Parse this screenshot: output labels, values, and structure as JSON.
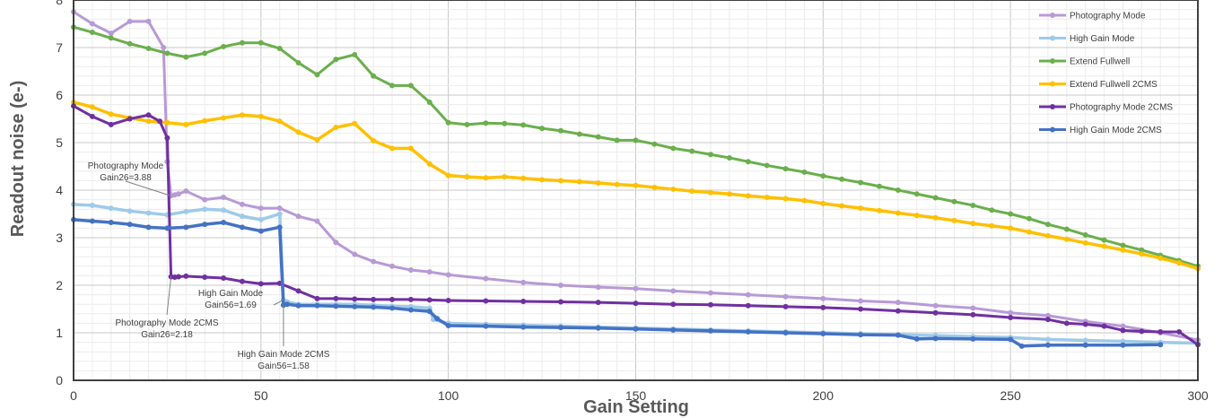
{
  "chart_data": {
    "type": "line",
    "xlabel": "Gain Setting",
    "ylabel": "Readout noise (e-)",
    "xlim": [
      0,
      300
    ],
    "ylim": [
      0,
      8
    ],
    "xticks": [
      0,
      50,
      100,
      150,
      200,
      250,
      300
    ],
    "yticks": [
      0,
      1,
      2,
      3,
      4,
      5,
      6,
      7,
      8
    ],
    "grid": true,
    "legend_position": "top-right",
    "series": [
      {
        "name": "Photography Mode",
        "color": "#b79ad6",
        "x": [
          0,
          5,
          10,
          15,
          20,
          24,
          25,
          26,
          27,
          28,
          30,
          35,
          40,
          45,
          50,
          55,
          60,
          65,
          70,
          75,
          80,
          85,
          90,
          95,
          100,
          110,
          120,
          130,
          140,
          150,
          160,
          170,
          180,
          190,
          200,
          210,
          220,
          230,
          240,
          250,
          260,
          270,
          280,
          290,
          300
        ],
        "y": [
          7.75,
          7.5,
          7.3,
          7.55,
          7.55,
          7.0,
          4.6,
          3.88,
          3.9,
          3.92,
          3.98,
          3.8,
          3.85,
          3.7,
          3.62,
          3.62,
          3.45,
          3.35,
          2.9,
          2.65,
          2.5,
          2.4,
          2.32,
          2.28,
          2.22,
          2.14,
          2.06,
          2.0,
          1.96,
          1.93,
          1.88,
          1.84,
          1.8,
          1.76,
          1.72,
          1.67,
          1.64,
          1.57,
          1.52,
          1.42,
          1.36,
          1.24,
          1.14,
          1.0,
          0.85
        ]
      },
      {
        "name": "High Gain Mode",
        "color": "#9ecae9",
        "x": [
          0,
          5,
          10,
          15,
          20,
          25,
          30,
          35,
          40,
          45,
          50,
          55,
          56,
          57,
          60,
          65,
          70,
          75,
          80,
          85,
          90,
          95,
          96,
          100,
          110,
          120,
          130,
          140,
          150,
          160,
          170,
          180,
          190,
          200,
          210,
          220,
          230,
          240,
          250,
          260,
          270,
          280,
          290,
          300
        ],
        "y": [
          3.7,
          3.68,
          3.62,
          3.56,
          3.52,
          3.48,
          3.55,
          3.6,
          3.58,
          3.45,
          3.38,
          3.5,
          1.69,
          1.65,
          1.6,
          1.6,
          1.6,
          1.6,
          1.58,
          1.56,
          1.55,
          1.52,
          1.28,
          1.2,
          1.18,
          1.16,
          1.14,
          1.12,
          1.1,
          1.08,
          1.06,
          1.04,
          1.02,
          1.0,
          0.98,
          0.96,
          0.94,
          0.92,
          0.9,
          0.86,
          0.84,
          0.82,
          0.8,
          0.78
        ]
      },
      {
        "name": "Extend Fullwell",
        "color": "#6aaf4c",
        "x": [
          0,
          5,
          10,
          15,
          20,
          25,
          30,
          35,
          40,
          45,
          50,
          55,
          60,
          65,
          70,
          75,
          80,
          85,
          90,
          95,
          100,
          105,
          110,
          115,
          120,
          125,
          130,
          135,
          140,
          145,
          150,
          155,
          160,
          165,
          170,
          175,
          180,
          185,
          190,
          195,
          200,
          205,
          210,
          215,
          220,
          225,
          230,
          235,
          240,
          245,
          250,
          255,
          260,
          265,
          270,
          275,
          280,
          285,
          290,
          295,
          300
        ],
        "y": [
          7.43,
          7.32,
          7.2,
          7.08,
          6.98,
          6.88,
          6.8,
          6.88,
          7.02,
          7.1,
          7.1,
          6.98,
          6.68,
          6.43,
          6.75,
          6.85,
          6.4,
          6.2,
          6.2,
          5.85,
          5.42,
          5.38,
          5.41,
          5.4,
          5.37,
          5.3,
          5.25,
          5.18,
          5.12,
          5.05,
          5.05,
          4.97,
          4.88,
          4.82,
          4.75,
          4.68,
          4.6,
          4.52,
          4.45,
          4.38,
          4.3,
          4.23,
          4.16,
          4.08,
          4.0,
          3.92,
          3.84,
          3.76,
          3.68,
          3.58,
          3.5,
          3.4,
          3.28,
          3.18,
          3.06,
          2.95,
          2.84,
          2.74,
          2.63,
          2.52,
          2.4
        ]
      },
      {
        "name": "Extend Fullwell 2CMS",
        "color": "#ffc000",
        "x": [
          0,
          5,
          10,
          15,
          20,
          25,
          30,
          35,
          40,
          45,
          50,
          55,
          60,
          65,
          70,
          75,
          80,
          85,
          90,
          95,
          100,
          105,
          110,
          115,
          120,
          125,
          130,
          135,
          140,
          145,
          150,
          155,
          160,
          165,
          170,
          175,
          180,
          185,
          190,
          195,
          200,
          205,
          210,
          215,
          220,
          225,
          230,
          235,
          240,
          245,
          250,
          255,
          260,
          265,
          270,
          275,
          280,
          285,
          290,
          295,
          300
        ],
        "y": [
          5.85,
          5.75,
          5.6,
          5.52,
          5.45,
          5.42,
          5.38,
          5.46,
          5.52,
          5.58,
          5.55,
          5.45,
          5.22,
          5.06,
          5.32,
          5.4,
          5.04,
          4.88,
          4.88,
          4.55,
          4.31,
          4.28,
          4.26,
          4.28,
          4.25,
          4.22,
          4.2,
          4.18,
          4.15,
          4.12,
          4.1,
          4.06,
          4.02,
          3.98,
          3.95,
          3.92,
          3.88,
          3.85,
          3.82,
          3.78,
          3.72,
          3.67,
          3.62,
          3.57,
          3.52,
          3.47,
          3.42,
          3.36,
          3.3,
          3.25,
          3.2,
          3.12,
          3.04,
          2.97,
          2.89,
          2.82,
          2.74,
          2.66,
          2.57,
          2.47,
          2.35
        ]
      },
      {
        "name": "Photography Mode 2CMS",
        "color": "#7030a0",
        "x": [
          0,
          5,
          10,
          15,
          20,
          23,
          25,
          26,
          27,
          28,
          30,
          35,
          40,
          45,
          50,
          55,
          60,
          65,
          70,
          75,
          80,
          85,
          90,
          95,
          100,
          110,
          120,
          130,
          140,
          150,
          160,
          170,
          180,
          190,
          200,
          210,
          220,
          230,
          240,
          250,
          260,
          265,
          270,
          275,
          280,
          285,
          290,
          295,
          300
        ],
        "y": [
          5.77,
          5.55,
          5.38,
          5.5,
          5.58,
          5.45,
          5.1,
          2.18,
          2.17,
          2.18,
          2.19,
          2.17,
          2.15,
          2.08,
          2.03,
          2.04,
          1.88,
          1.72,
          1.72,
          1.71,
          1.7,
          1.7,
          1.7,
          1.69,
          1.68,
          1.67,
          1.66,
          1.65,
          1.64,
          1.62,
          1.6,
          1.59,
          1.57,
          1.55,
          1.53,
          1.5,
          1.46,
          1.42,
          1.38,
          1.32,
          1.28,
          1.2,
          1.18,
          1.14,
          1.05,
          1.03,
          1.02,
          1.02,
          0.75
        ]
      },
      {
        "name": "High Gain Mode 2CMS",
        "color": "#4472c4",
        "x": [
          0,
          5,
          10,
          15,
          20,
          25,
          30,
          35,
          40,
          45,
          50,
          55,
          56,
          57,
          60,
          65,
          70,
          75,
          80,
          85,
          90,
          95,
          97,
          100,
          110,
          120,
          130,
          140,
          150,
          160,
          170,
          180,
          190,
          200,
          210,
          220,
          225,
          230,
          240,
          250,
          253,
          260,
          270,
          280,
          290
        ],
        "y": [
          3.38,
          3.35,
          3.32,
          3.28,
          3.22,
          3.2,
          3.22,
          3.28,
          3.32,
          3.22,
          3.14,
          3.22,
          1.58,
          1.6,
          1.57,
          1.57,
          1.56,
          1.55,
          1.54,
          1.52,
          1.48,
          1.45,
          1.3,
          1.15,
          1.14,
          1.12,
          1.11,
          1.1,
          1.08,
          1.06,
          1.04,
          1.02,
          1.0,
          0.98,
          0.96,
          0.95,
          0.87,
          0.88,
          0.87,
          0.86,
          0.72,
          0.74,
          0.74,
          0.74,
          0.75
        ]
      }
    ],
    "annotations": [
      {
        "lines": [
          "Photography Mode",
          "Gain26=3.88"
        ],
        "x": 26,
        "y": 3.88
      },
      {
        "lines": [
          "High Gain Mode",
          "Gain56=1.69"
        ],
        "x": 56,
        "y": 1.69
      },
      {
        "lines": [
          "Photography Mode 2CMS",
          "Gain26=2.18"
        ],
        "x": 26,
        "y": 2.18
      },
      {
        "lines": [
          "High Gain Mode 2CMS",
          "Gain56=1.58"
        ],
        "x": 56,
        "y": 1.58
      }
    ]
  }
}
